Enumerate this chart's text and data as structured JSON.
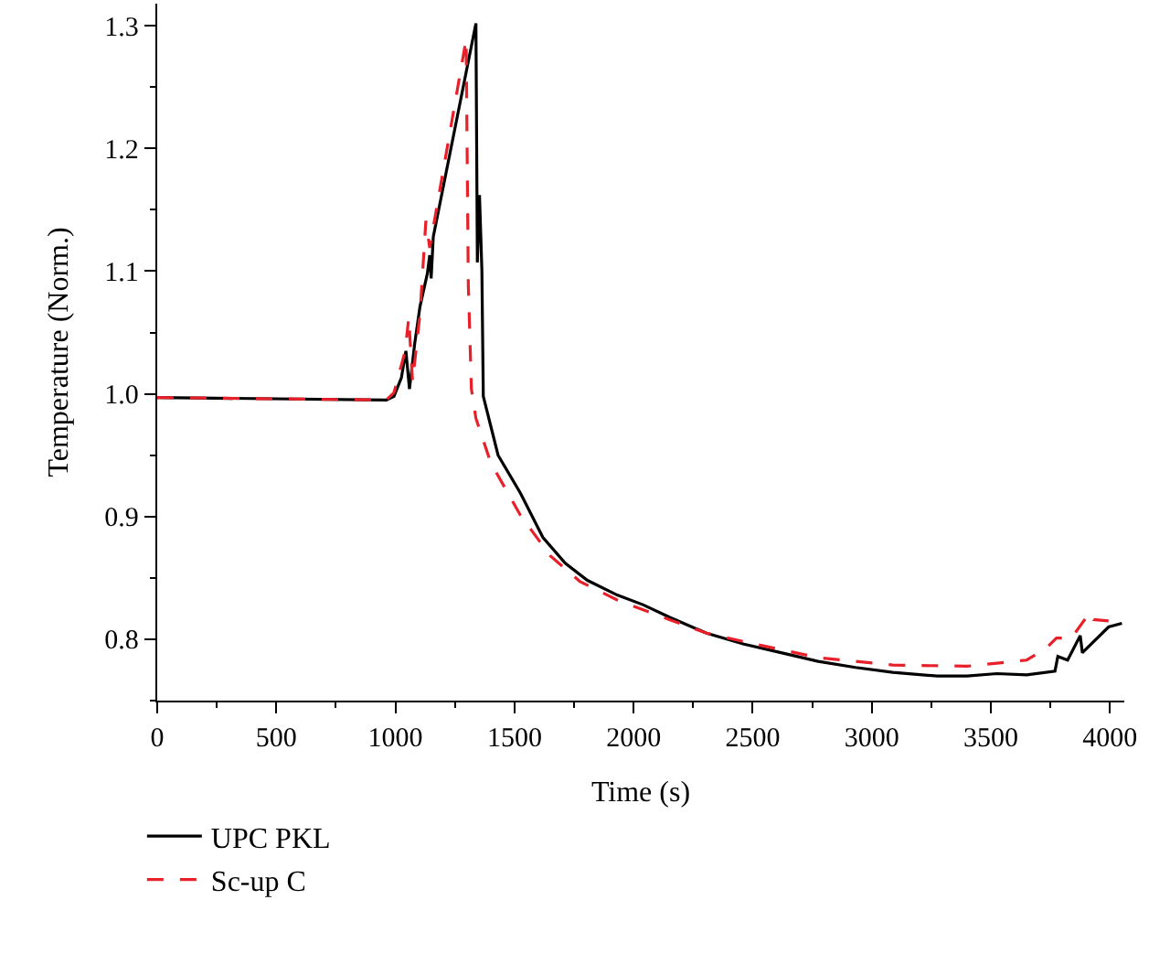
{
  "chart_data": {
    "type": "line",
    "xlabel": "Time (s)",
    "ylabel": "Temperature (Norm.)",
    "xlim": [
      0,
      4060
    ],
    "xticks": [
      0,
      500,
      1000,
      1500,
      2000,
      2500,
      3000,
      3500,
      4000
    ],
    "ylim": [
      0.75,
      1.318
    ],
    "yticks": [
      0.8,
      0.9,
      {
        "value": 1,
        "label": "1.0"
      },
      1.1,
      1.2,
      1.3
    ],
    "legend": "bottom left",
    "marker": "none",
    "series": [
      {
        "name": "UPC PKL",
        "color": "#000000",
        "line_style": "solid",
        "x": [
          0,
          962,
          994,
          1025,
          1044,
          1059,
          1081,
          1103,
          1134,
          1144,
          1150,
          1159,
          1338,
          1344,
          1353,
          1363,
          1369,
          1400,
          1431,
          1525,
          1619,
          1713,
          1806,
          1931,
          2041,
          2150,
          2306,
          2463,
          2619,
          2775,
          2931,
          3088,
          3275,
          3400,
          3525,
          3650,
          3769,
          3781,
          3822,
          3875,
          3884,
          3931,
          3994,
          4050
        ],
        "values": [
          0.997,
          0.995,
          0.998,
          1.013,
          1.035,
          1.004,
          1.041,
          1.071,
          1.098,
          1.113,
          1.094,
          1.128,
          1.302,
          1.107,
          1.162,
          1.101,
          0.998,
          0.974,
          0.95,
          0.919,
          0.883,
          0.862,
          0.848,
          0.836,
          0.828,
          0.818,
          0.805,
          0.796,
          0.789,
          0.782,
          0.777,
          0.773,
          0.77,
          0.77,
          0.772,
          0.771,
          0.774,
          0.786,
          0.783,
          0.803,
          0.789,
          0.798,
          0.81,
          0.813
        ]
      },
      {
        "name": "Sc-up C",
        "color": "#e8202a",
        "line_style": "dashed",
        "x": [
          0,
          962,
          994,
          1041,
          1056,
          1072,
          1103,
          1128,
          1144,
          1297,
          1306,
          1319,
          1338,
          1400,
          1525,
          1650,
          1775,
          1931,
          2150,
          2306,
          2463,
          2775,
          3088,
          3400,
          3650,
          3728,
          3775,
          3838,
          3916,
          3931,
          3994
        ],
        "values": [
          0.997,
          0.995,
          1.001,
          1.035,
          1.062,
          1.01,
          1.065,
          1.141,
          1.119,
          1.289,
          1.089,
          1.004,
          0.98,
          0.944,
          0.901,
          0.868,
          0.847,
          0.832,
          0.816,
          0.805,
          0.798,
          0.785,
          0.779,
          0.778,
          0.783,
          0.792,
          0.801,
          0.801,
          0.822,
          0.816,
          0.815
        ]
      }
    ]
  }
}
